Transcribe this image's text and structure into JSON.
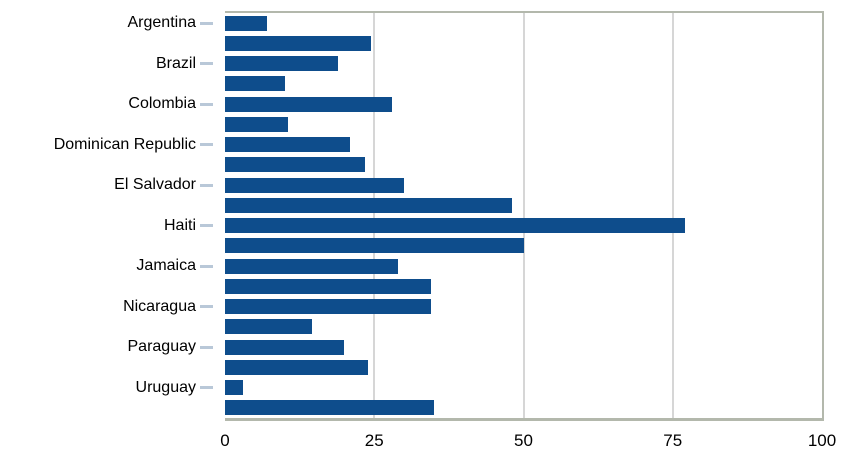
{
  "chart_data": {
    "type": "bar",
    "orientation": "horizontal",
    "title": "",
    "xlabel": "",
    "ylabel": "",
    "xlim": [
      0,
      100
    ],
    "x_tick_labels": [
      "0",
      "25",
      "50",
      "75",
      "100"
    ],
    "x_tick_values": [
      0,
      25,
      50,
      75,
      100
    ],
    "gridlines_at": [
      25,
      50,
      75
    ],
    "grid": "vertical-only",
    "legend": "none",
    "categories": [
      "Argentina",
      "Brazil",
      "Colombia",
      "Dominican Republic",
      "El Salvador",
      "Haiti",
      "Jamaica",
      "Nicaragua",
      "Paraguay",
      "Uruguay"
    ],
    "bars": [
      {
        "label": "Argentina",
        "value": 7
      },
      {
        "label": "",
        "value": 24.5
      },
      {
        "label": "Brazil",
        "value": 19
      },
      {
        "label": "",
        "value": 10
      },
      {
        "label": "Colombia",
        "value": 28
      },
      {
        "label": "",
        "value": 10.5
      },
      {
        "label": "Dominican Republic",
        "value": 21
      },
      {
        "label": "",
        "value": 23.5
      },
      {
        "label": "El Salvador",
        "value": 30
      },
      {
        "label": "",
        "value": 48
      },
      {
        "label": "Haiti",
        "value": 77
      },
      {
        "label": "",
        "value": 50
      },
      {
        "label": "Jamaica",
        "value": 29
      },
      {
        "label": "",
        "value": 34.5
      },
      {
        "label": "Nicaragua",
        "value": 34.5
      },
      {
        "label": "",
        "value": 14.5
      },
      {
        "label": "Paraguay",
        "value": 20
      },
      {
        "label": "",
        "value": 24
      },
      {
        "label": "Uruguay",
        "value": 3
      },
      {
        "label": "",
        "value": 35
      }
    ],
    "colors": {
      "bar": "#0e4d8c",
      "frame": "#b3b8ac",
      "gridline": "#d6d6d6",
      "label_tick": "#b9c8d8",
      "text": "#000000"
    }
  }
}
